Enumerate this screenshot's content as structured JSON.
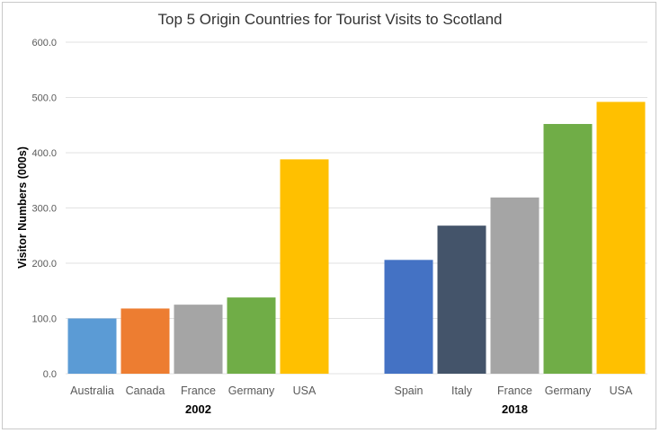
{
  "chart_data": {
    "type": "bar",
    "title": "Top 5 Origin Countries for Tourist Visits to Scotland",
    "ylabel": "Visitor Numbers (000s)",
    "xlabel": "",
    "ylim": [
      0,
      600
    ],
    "yticks": [
      "0.0",
      "100.0",
      "200.0",
      "300.0",
      "400.0",
      "500.0",
      "600.0"
    ],
    "grid": true,
    "groups": [
      {
        "name": "2002",
        "categories": [
          "Australia",
          "Canada",
          "France",
          "Germany",
          "USA"
        ],
        "values": [
          100,
          118,
          125,
          138,
          388
        ],
        "colors": [
          "#5b9bd5",
          "#ed7d31",
          "#a5a5a5",
          "#70ad47",
          "#ffc000"
        ]
      },
      {
        "name": "2018",
        "categories": [
          "Spain",
          "Italy",
          "France",
          "Germany",
          "USA"
        ],
        "values": [
          206,
          268,
          319,
          452,
          492
        ],
        "colors": [
          "#4472c4",
          "#44546a",
          "#a5a5a5",
          "#70ad47",
          "#ffc000"
        ]
      }
    ]
  }
}
